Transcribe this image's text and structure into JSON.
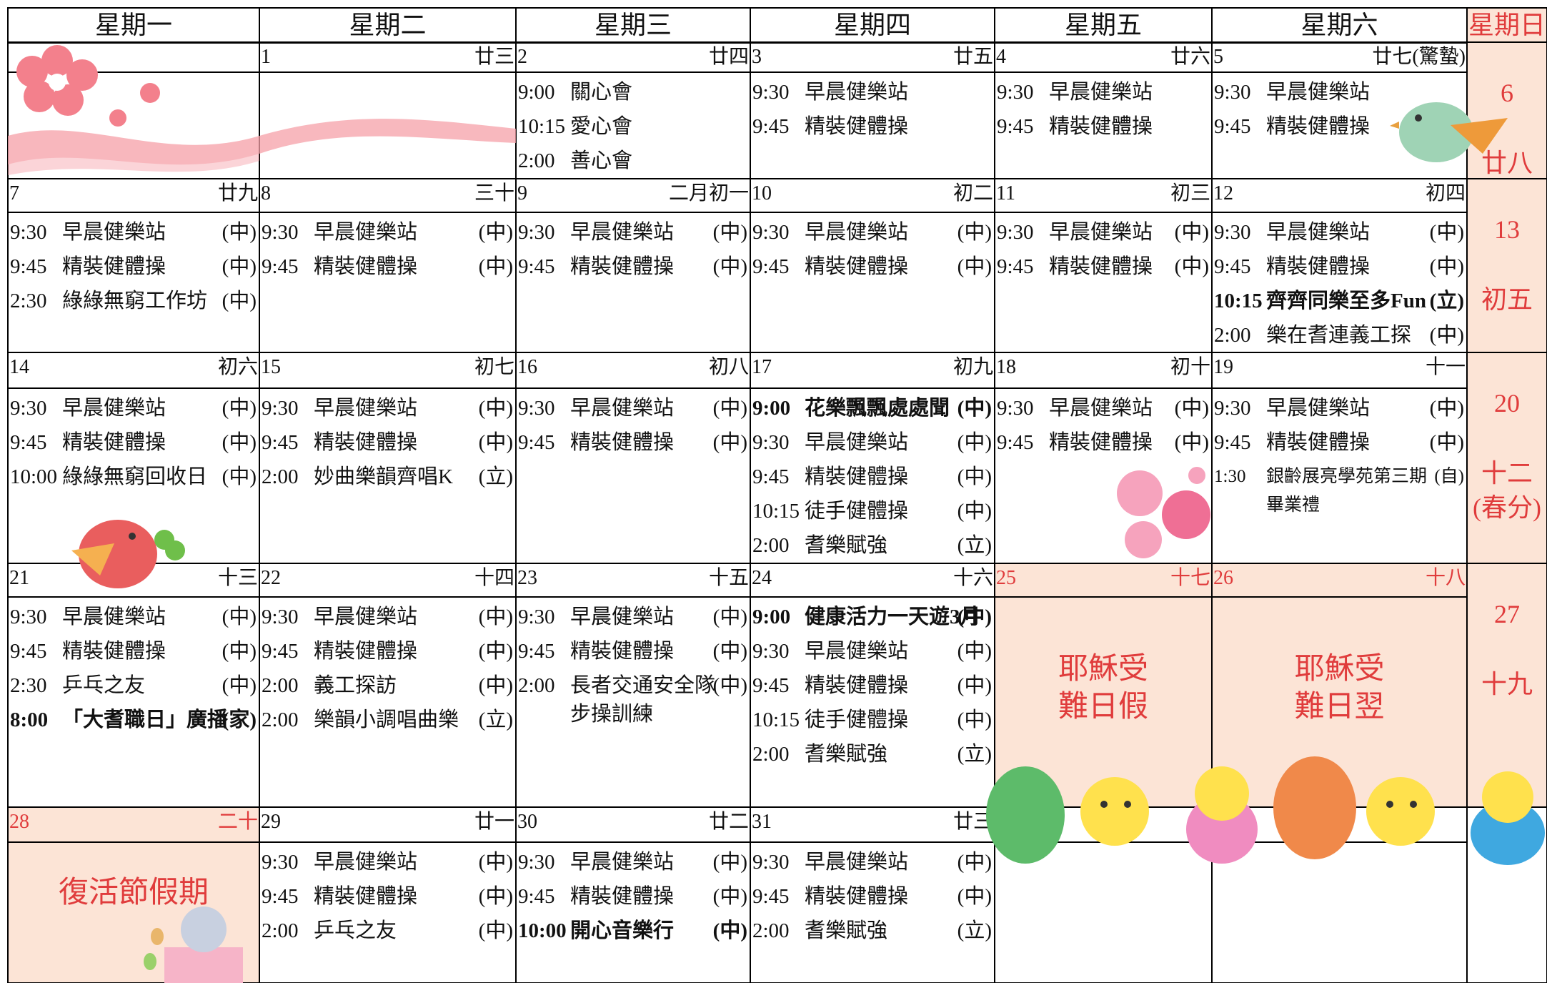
{
  "header": {
    "days": [
      "星期一",
      "星期二",
      "星期三",
      "星期四",
      "星期五",
      "星期六",
      "星期日"
    ]
  },
  "weeks": [
    {
      "days": [
        null,
        {
          "date": "1",
          "lunar": "廿三",
          "events": []
        },
        {
          "date": "2",
          "lunar": "廿四",
          "events": [
            {
              "time": "9:00",
              "name": "關心會"
            },
            {
              "time": "10:15",
              "name": "愛心會"
            },
            {
              "time": "2:00",
              "name": "善心會"
            }
          ]
        },
        {
          "date": "3",
          "lunar": "廿五",
          "events": [
            {
              "time": "9:30",
              "name": "早晨健樂站"
            },
            {
              "time": "9:45",
              "name": "精裝健體操"
            }
          ]
        },
        {
          "date": "4",
          "lunar": "廿六",
          "events": [
            {
              "time": "9:30",
              "name": "早晨健樂站"
            },
            {
              "time": "9:45",
              "name": "精裝健體操"
            }
          ]
        },
        {
          "date": "5",
          "lunar": "廿七(驚蟄)",
          "events": [
            {
              "time": "9:30",
              "name": "早晨健樂站"
            },
            {
              "time": "9:45",
              "name": "精裝健體操"
            }
          ]
        }
      ],
      "sunday": {
        "date": "6",
        "lunar": "廿八"
      }
    },
    {
      "days": [
        {
          "date": "7",
          "lunar": "廿九",
          "events": [
            {
              "time": "9:30",
              "name": "早晨健樂站",
              "tag": "(中)"
            },
            {
              "time": "9:45",
              "name": "精裝健體操",
              "tag": "(中)"
            },
            {
              "time": "2:30",
              "name": "綠綠無窮工作坊",
              "tag": "(中)"
            }
          ]
        },
        {
          "date": "8",
          "lunar": "三十",
          "events": [
            {
              "time": "9:30",
              "name": "早晨健樂站",
              "tag": "(中)"
            },
            {
              "time": "9:45",
              "name": "精裝健體操",
              "tag": "(中)"
            }
          ]
        },
        {
          "date": "9",
          "lunar": "二月初一",
          "events": [
            {
              "time": "9:30",
              "name": "早晨健樂站",
              "tag": "(中)"
            },
            {
              "time": "9:45",
              "name": "精裝健體操",
              "tag": "(中)"
            }
          ]
        },
        {
          "date": "10",
          "lunar": "初二",
          "events": [
            {
              "time": "9:30",
              "name": "早晨健樂站",
              "tag": "(中)"
            },
            {
              "time": "9:45",
              "name": "精裝健體操",
              "tag": "(中)"
            }
          ]
        },
        {
          "date": "11",
          "lunar": "初三",
          "events": [
            {
              "time": "9:30",
              "name": "早晨健樂站",
              "tag": "(中)"
            },
            {
              "time": "9:45",
              "name": "精裝健體操",
              "tag": "(中)"
            }
          ]
        },
        {
          "date": "12",
          "lunar": "初四",
          "events": [
            {
              "time": "9:30",
              "name": "早晨健樂站",
              "tag": "(中)"
            },
            {
              "time": "9:45",
              "name": "精裝健體操",
              "tag": "(中)"
            },
            {
              "time": "10:15",
              "name": "齊齊同樂至多Fun",
              "tag": "(立)",
              "bold": true
            },
            {
              "time": "2:00",
              "name": "樂在耆連義工探",
              "tag": "(中)"
            }
          ]
        }
      ],
      "sunday": {
        "date": "13",
        "lunar": "初五"
      }
    },
    {
      "days": [
        {
          "date": "14",
          "lunar": "初六",
          "events": [
            {
              "time": "9:30",
              "name": "早晨健樂站",
              "tag": "(中)"
            },
            {
              "time": "9:45",
              "name": "精裝健體操",
              "tag": "(中)"
            },
            {
              "time": "10:00",
              "name": "綠綠無窮回收日",
              "tag": "(中)"
            }
          ]
        },
        {
          "date": "15",
          "lunar": "初七",
          "events": [
            {
              "time": "9:30",
              "name": "早晨健樂站",
              "tag": "(中)"
            },
            {
              "time": "9:45",
              "name": "精裝健體操",
              "tag": "(中)"
            },
            {
              "time": "2:00",
              "name": "妙曲樂韻齊唱K",
              "tag": "(立)"
            }
          ]
        },
        {
          "date": "16",
          "lunar": "初八",
          "events": [
            {
              "time": "9:30",
              "name": "早晨健樂站",
              "tag": "(中)"
            },
            {
              "time": "9:45",
              "name": "精裝健體操",
              "tag": "(中)"
            }
          ]
        },
        {
          "date": "17",
          "lunar": "初九",
          "events": [
            {
              "time": "9:00",
              "name": "花樂飄飄處處聞",
              "tag": "(中)",
              "bold": true
            },
            {
              "time": "9:30",
              "name": "早晨健樂站",
              "tag": "(中)"
            },
            {
              "time": "9:45",
              "name": "精裝健體操",
              "tag": "(中)"
            },
            {
              "time": "10:15",
              "name": "徒手健體操",
              "tag": "(中)"
            },
            {
              "time": "2:00",
              "name": "耆樂賦強",
              "tag": "(立)"
            }
          ]
        },
        {
          "date": "18",
          "lunar": "初十",
          "events": [
            {
              "time": "9:30",
              "name": "早晨健樂站",
              "tag": "(中)"
            },
            {
              "time": "9:45",
              "name": "精裝健體操",
              "tag": "(中)"
            }
          ]
        },
        {
          "date": "19",
          "lunar": "十一",
          "events": [
            {
              "time": "9:30",
              "name": "早晨健樂站",
              "tag": "(中)"
            },
            {
              "time": "9:45",
              "name": "精裝健體操",
              "tag": "(中)"
            },
            {
              "time": "1:30",
              "name": "銀齡展亮學苑第三期",
              "tag": "(自)",
              "note": "畢業禮",
              "small": true
            }
          ]
        }
      ],
      "sunday": {
        "date": "20",
        "lunar": "十二",
        "term": "(春分)"
      }
    },
    {
      "days": [
        {
          "date": "21",
          "lunar": "十三",
          "events": [
            {
              "time": "9:30",
              "name": "早晨健樂站",
              "tag": "(中)"
            },
            {
              "time": "9:45",
              "name": "精裝健體操",
              "tag": "(中)"
            },
            {
              "time": "2:30",
              "name": "乒乓之友",
              "tag": "(中)"
            },
            {
              "time": "8:00",
              "name": "「大耆職日」廣播",
              "tag": "(家)",
              "bold": true
            }
          ]
        },
        {
          "date": "22",
          "lunar": "十四",
          "events": [
            {
              "time": "9:30",
              "name": "早晨健樂站",
              "tag": "(中)"
            },
            {
              "time": "9:45",
              "name": "精裝健體操",
              "tag": "(中)"
            },
            {
              "time": "2:00",
              "name": "義工探訪",
              "tag": "(中)"
            },
            {
              "time": "2:00",
              "name": "樂韻小調唱曲樂",
              "tag": "(立)"
            }
          ]
        },
        {
          "date": "23",
          "lunar": "十五",
          "events": [
            {
              "time": "9:30",
              "name": "早晨健樂站",
              "tag": "(中)"
            },
            {
              "time": "9:45",
              "name": "精裝健體操",
              "tag": "(中)"
            },
            {
              "time": "2:00",
              "name": "長者交通安全隊",
              "tag": "(中)",
              "note": "步操訓練"
            }
          ]
        },
        {
          "date": "24",
          "lunar": "十六",
          "events": [
            {
              "time": "9:00",
              "name": "健康活力一天遊3月",
              "tag": "(中)",
              "bold": true
            },
            {
              "time": "9:30",
              "name": "早晨健樂站",
              "tag": "(中)"
            },
            {
              "time": "9:45",
              "name": "精裝健體操",
              "tag": "(中)"
            },
            {
              "time": "10:15",
              "name": "徒手健體操",
              "tag": "(中)"
            },
            {
              "time": "2:00",
              "name": "耆樂賦強",
              "tag": "(立)"
            }
          ]
        },
        {
          "date": "25",
          "lunar": "十七",
          "holiday": [
            "耶穌受",
            "難日假"
          ]
        },
        {
          "date": "26",
          "lunar": "十八",
          "holiday": [
            "耶穌受",
            "難日翌"
          ]
        }
      ],
      "sunday": {
        "date": "27",
        "lunar": "十九"
      }
    },
    {
      "days": [
        {
          "date": "28",
          "lunar": "二十",
          "holiday": [
            "復活節假期"
          ]
        },
        {
          "date": "29",
          "lunar": "廿一",
          "events": [
            {
              "time": "9:30",
              "name": "早晨健樂站",
              "tag": "(中)"
            },
            {
              "time": "9:45",
              "name": "精裝健體操",
              "tag": "(中)"
            },
            {
              "time": "2:00",
              "name": "乒乓之友",
              "tag": "(中)"
            }
          ]
        },
        {
          "date": "30",
          "lunar": "廿二",
          "events": [
            {
              "time": "9:30",
              "name": "早晨健樂站",
              "tag": "(中)"
            },
            {
              "time": "9:45",
              "name": "精裝健體操",
              "tag": "(中)"
            },
            {
              "time": "10:00",
              "name": "開心音樂行",
              "tag": "(中)",
              "bold": true
            }
          ]
        },
        {
          "date": "31",
          "lunar": "廿三",
          "events": [
            {
              "time": "9:30",
              "name": "早晨健樂站",
              "tag": "(中)"
            },
            {
              "time": "9:45",
              "name": "精裝健體操",
              "tag": "(中)"
            },
            {
              "time": "2:00",
              "name": "耆樂賦強",
              "tag": "(立)"
            }
          ]
        },
        null,
        null
      ],
      "sunday": null
    }
  ]
}
